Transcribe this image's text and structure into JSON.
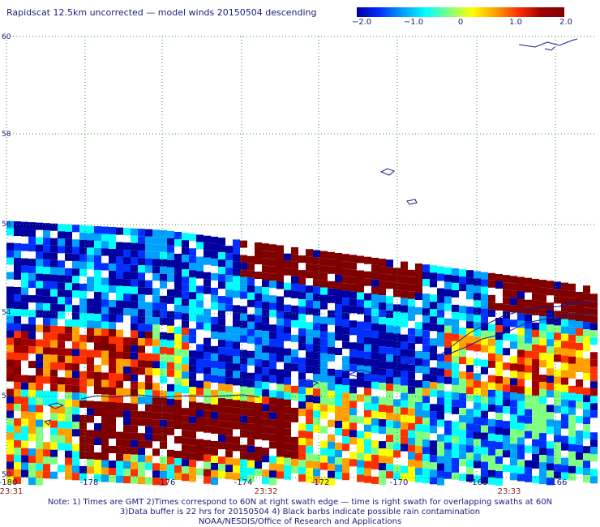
{
  "title": "Rapidscat 12.5km uncorrected — model winds 20150504 descending",
  "colorbar": {
    "labels": [
      "−2.0",
      "−1.0",
      "0",
      "1.0",
      "2.0"
    ],
    "stops": [
      "#0000a0",
      "#0030ff",
      "#00a0ff",
      "#00ffff",
      "#80ff80",
      "#ffff00",
      "#ffa000",
      "#ff3000",
      "#a00000",
      "#800000"
    ]
  },
  "axes": {
    "lon_labels": [
      "-180",
      "-178",
      "-176",
      "-174",
      "-172",
      "-170",
      "-168",
      "-166"
    ],
    "lat_labels": [
      "60",
      "58",
      "56",
      "54",
      "52",
      "50"
    ]
  },
  "times": [
    "23:31",
    "23:32",
    "23:33"
  ],
  "notes": [
    "Note: 1) Times are GMT 2)Times correspond to 60N at right swath edge — time is right swath for overlapping swaths at 60N",
    "3)Data buffer is 22 hrs for 20150504 4) Black barbs indicate possible rain contamination",
    "NOAA/NESDIS/Office of Research and Applications"
  ],
  "colors": {
    "grid": "#2f8f2f",
    "coast": "#1b1b8a",
    "text": "#1b1b7a",
    "time_text": "#8a1c1c",
    "nodata": "#ffffff"
  }
}
